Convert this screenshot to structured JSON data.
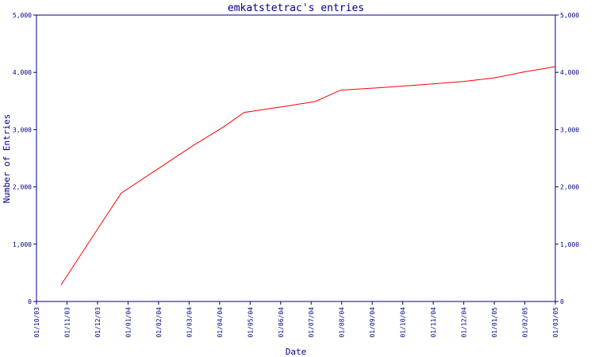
{
  "chart_data": {
    "type": "line",
    "title": "emkatstetrac's entries",
    "xlabel": "Date",
    "ylabel": "Number of Entries",
    "x_tick_labels": [
      "01/10/03",
      "01/11/03",
      "01/12/03",
      "01/01/04",
      "01/02/04",
      "01/03/04",
      "01/04/04",
      "01/05/04",
      "01/06/04",
      "01/07/04",
      "01/08/04",
      "01/09/04",
      "01/10/04",
      "01/11/04",
      "01/12/04",
      "01/01/05",
      "01/02/05",
      "01/03/05"
    ],
    "y_tick_labels": [
      "0",
      "1,000",
      "2,000",
      "3,000",
      "4,000",
      "5,000"
    ],
    "y_ticks": [
      0,
      1000,
      2000,
      3000,
      4000,
      5000
    ],
    "ylim": [
      0,
      5000
    ],
    "xlim": [
      "2003-10-01",
      "2005-03-01"
    ],
    "grid": false,
    "series": [
      {
        "color": "#ff0000",
        "points": [
          {
            "x": "2003-10-26",
            "y": 290
          },
          {
            "x": "2003-11-25",
            "y": 1100
          },
          {
            "x": "2003-12-25",
            "y": 1890
          },
          {
            "x": "2004-01-30",
            "y": 2300
          },
          {
            "x": "2004-03-05",
            "y": 2720
          },
          {
            "x": "2004-04-05",
            "y": 3050
          },
          {
            "x": "2004-04-25",
            "y": 3300
          },
          {
            "x": "2004-06-10",
            "y": 3420
          },
          {
            "x": "2004-07-05",
            "y": 3490
          },
          {
            "x": "2004-07-31",
            "y": 3690
          },
          {
            "x": "2004-09-15",
            "y": 3740
          },
          {
            "x": "2004-10-25",
            "y": 3790
          },
          {
            "x": "2004-11-30",
            "y": 3840
          },
          {
            "x": "2004-12-31",
            "y": 3900
          },
          {
            "x": "2005-02-01",
            "y": 4010
          },
          {
            "x": "2005-03-01",
            "y": 4100
          }
        ]
      }
    ]
  }
}
